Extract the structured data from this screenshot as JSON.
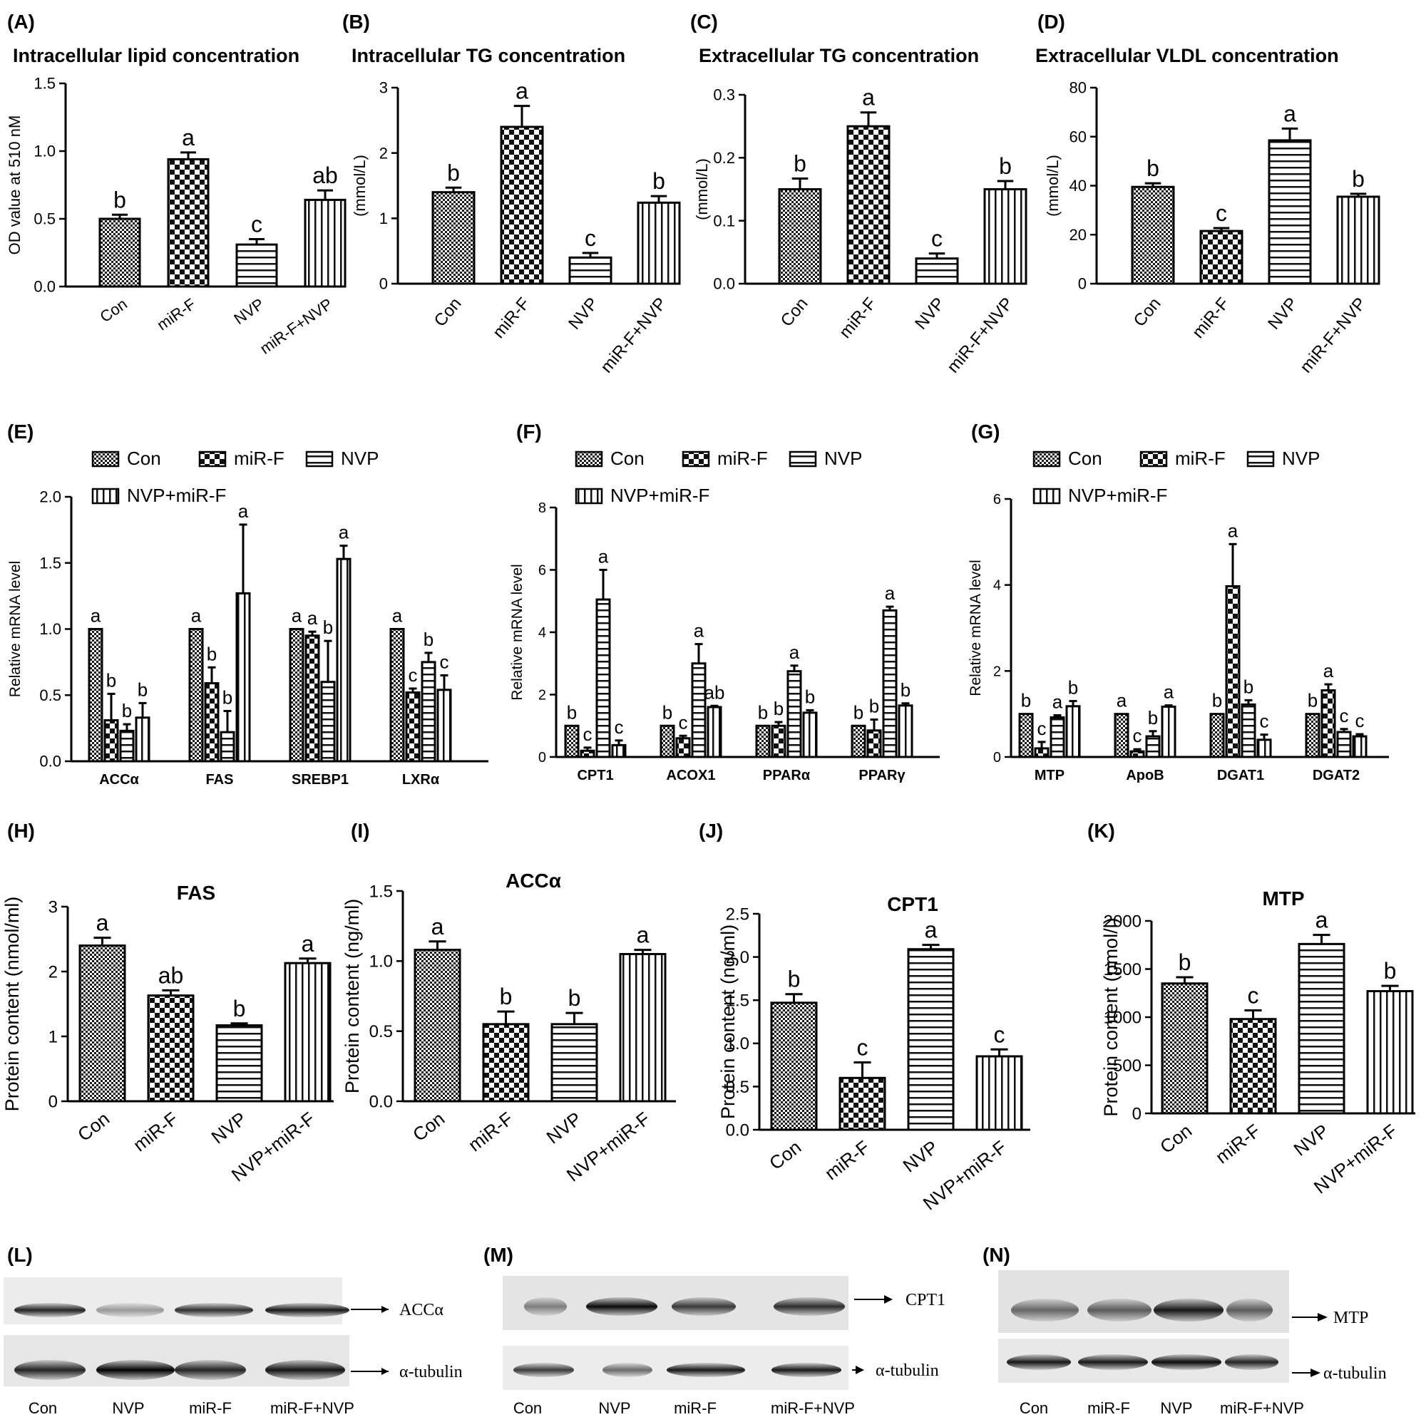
{
  "figure": {
    "western_blots": [
      {
        "label": "(L)",
        "lanes": [
          "Con",
          "NVP",
          "miR-F",
          "miR-F+NVP"
        ],
        "targets": [
          "ACCα",
          "α-tubulin"
        ]
      },
      {
        "label": "(M)",
        "lanes": [
          "Con",
          "NVP",
          "miR-F",
          "miR-F+NVP"
        ],
        "targets": [
          "CPT1",
          "α-tubulin"
        ]
      },
      {
        "label": "(N)",
        "lanes": [
          "Con",
          "miR-F",
          "NVP",
          "miR-F+NVP"
        ],
        "targets": [
          "MTP",
          "α-tubulin"
        ]
      }
    ]
  },
  "chart_data": [
    {
      "id": "A",
      "label": "(A)",
      "type": "bar",
      "title": "Intracellular lipid concentration",
      "ylabel": "OD value at 510 nM",
      "ylim": [
        0,
        1.5
      ],
      "yticks": [
        "0.0",
        "0.5",
        "1.0",
        "1.5"
      ],
      "categories": [
        "Con",
        "miR-F",
        "NVP",
        "miR-F+NVP"
      ],
      "values": [
        0.5,
        0.94,
        0.31,
        0.64
      ],
      "errors": [
        0.03,
        0.05,
        0.04,
        0.07
      ],
      "letters": [
        "b",
        "a",
        "c",
        "ab"
      ],
      "patterns": [
        "dense",
        "check",
        "hlines",
        "vlines"
      ]
    },
    {
      "id": "B",
      "label": "(B)",
      "type": "bar",
      "title": "Intracellular TG concentration",
      "ylabel": "(mmol/L)",
      "ylim": [
        0,
        3
      ],
      "yticks": [
        "0",
        "1",
        "2",
        "3"
      ],
      "categories": [
        "Con",
        "miR-F",
        "NVP",
        "miR-F+NVP"
      ],
      "values": [
        1.4,
        2.4,
        0.4,
        1.24
      ],
      "errors": [
        0.07,
        0.32,
        0.07,
        0.1
      ],
      "letters": [
        "b",
        "a",
        "c",
        "b"
      ],
      "patterns": [
        "dense",
        "check",
        "hlines",
        "vlines"
      ]
    },
    {
      "id": "C",
      "label": "(C)",
      "type": "bar",
      "title": "Extracellular TG concentration",
      "ylabel": "(mmol/L)",
      "ylim": [
        0,
        0.3
      ],
      "yticks": [
        "0.0",
        "0.1",
        "0.2",
        "0.3"
      ],
      "categories": [
        "Con",
        "miR-F",
        "NVP",
        "miR-F+NVP"
      ],
      "values": [
        0.15,
        0.25,
        0.04,
        0.15
      ],
      "errors": [
        0.017,
        0.022,
        0.008,
        0.013
      ],
      "letters": [
        "b",
        "a",
        "c",
        "b"
      ],
      "patterns": [
        "dense",
        "check",
        "hlines",
        "vlines"
      ]
    },
    {
      "id": "D",
      "label": "(D)",
      "type": "bar",
      "title": "Extracellular VLDL concentration",
      "ylabel": "(mmol/L)",
      "ylim": [
        0,
        80
      ],
      "yticks": [
        "0",
        "20",
        "40",
        "60",
        "80"
      ],
      "categories": [
        "Con",
        "miR-F",
        "NVP",
        "miR-F+NVP"
      ],
      "values": [
        39.5,
        21.5,
        58.5,
        35.5
      ],
      "errors": [
        1.5,
        1.2,
        4.8,
        1.2
      ],
      "letters": [
        "b",
        "c",
        "a",
        "b"
      ],
      "patterns": [
        "dense",
        "check",
        "hlines",
        "vlines"
      ]
    },
    {
      "id": "E",
      "label": "(E)",
      "type": "bar",
      "ylabel": "Relative mRNA level",
      "ylim": [
        0,
        2
      ],
      "yticks": [
        "0.0",
        "0.5",
        "1.0",
        "1.5",
        "2.0"
      ],
      "categories": [
        "ACCα",
        "FAS",
        "SREBP1",
        "LXRα"
      ],
      "legend": [
        "Con",
        "miR-F",
        "NVP",
        "NVP+miR-F"
      ],
      "series": [
        {
          "name": "Con",
          "pattern": "dense",
          "values": [
            1.0,
            1.0,
            1.0,
            1.0
          ],
          "errors": [
            0,
            0,
            0,
            0
          ],
          "letters": [
            "a",
            "a",
            "a",
            "a"
          ]
        },
        {
          "name": "miR-F",
          "pattern": "check",
          "values": [
            0.31,
            0.59,
            0.95,
            0.52
          ],
          "errors": [
            0.2,
            0.12,
            0.03,
            0.03
          ],
          "letters": [
            "b",
            "b",
            "a",
            "c"
          ]
        },
        {
          "name": "NVP",
          "pattern": "hlines",
          "values": [
            0.23,
            0.22,
            0.6,
            0.75
          ],
          "errors": [
            0.05,
            0.16,
            0.31,
            0.07
          ],
          "letters": [
            "b",
            "b",
            "b",
            "b"
          ]
        },
        {
          "name": "NVP+miR-F",
          "pattern": "vlines",
          "values": [
            0.33,
            1.27,
            1.53,
            0.54
          ],
          "errors": [
            0.11,
            0.52,
            0.1,
            0.11
          ],
          "letters": [
            "b",
            "a",
            "a",
            "c"
          ]
        }
      ]
    },
    {
      "id": "F",
      "label": "(F)",
      "type": "bar",
      "ylabel": "Relative mRNA level",
      "ylim": [
        0,
        8
      ],
      "yticks": [
        "0",
        "2",
        "4",
        "6",
        "8"
      ],
      "categories": [
        "CPT1",
        "ACOX1",
        "PPARα",
        "PPARγ"
      ],
      "legend": [
        "Con",
        "miR-F",
        "NVP",
        "NVP+miR-F"
      ],
      "series": [
        {
          "name": "Con",
          "pattern": "dense",
          "values": [
            1.0,
            1.0,
            1.0,
            1.0
          ],
          "errors": [
            0,
            0,
            0,
            0
          ],
          "letters": [
            "b",
            "b",
            "b",
            "b"
          ]
        },
        {
          "name": "miR-F",
          "pattern": "check",
          "values": [
            0.2,
            0.6,
            1.0,
            0.85
          ],
          "errors": [
            0.1,
            0.08,
            0.12,
            0.35
          ],
          "letters": [
            "c",
            "c",
            "b",
            "b"
          ]
        },
        {
          "name": "NVP",
          "pattern": "hlines",
          "values": [
            5.05,
            3.0,
            2.75,
            4.7
          ],
          "errors": [
            0.95,
            0.62,
            0.18,
            0.12
          ],
          "letters": [
            "a",
            "a",
            "a",
            "a"
          ]
        },
        {
          "name": "NVP+miR-F",
          "pattern": "vlines",
          "values": [
            0.38,
            1.6,
            1.42,
            1.65
          ],
          "errors": [
            0.15,
            0.04,
            0.08,
            0.07
          ],
          "letters": [
            "c",
            "ab",
            "b",
            "b"
          ]
        }
      ]
    },
    {
      "id": "G",
      "label": "(G)",
      "type": "bar",
      "ylabel": "Relative mRNA level",
      "ylim": [
        0,
        6
      ],
      "yticks": [
        "0",
        "2",
        "4",
        "6"
      ],
      "categories": [
        "MTP",
        "ApoB",
        "DGAT1",
        "DGAT2"
      ],
      "legend": [
        "Con",
        "miR-F",
        "NVP",
        "NVP+miR-F"
      ],
      "series": [
        {
          "name": "Con",
          "pattern": "dense",
          "values": [
            1.0,
            1.0,
            1.0,
            1.0
          ],
          "errors": [
            0,
            0,
            0,
            0
          ],
          "letters": [
            "b",
            "a",
            "b",
            "b"
          ]
        },
        {
          "name": "miR-F",
          "pattern": "check",
          "values": [
            0.2,
            0.13,
            3.97,
            1.55
          ],
          "errors": [
            0.15,
            0.05,
            0.98,
            0.14
          ],
          "letters": [
            "c",
            "c",
            "a",
            "a"
          ]
        },
        {
          "name": "NVP",
          "pattern": "hlines",
          "values": [
            0.92,
            0.48,
            1.22,
            0.58
          ],
          "errors": [
            0.05,
            0.12,
            0.1,
            0.07
          ],
          "letters": [
            "a",
            "b",
            "b",
            "c"
          ]
        },
        {
          "name": "NVP+miR-F",
          "pattern": "vlines",
          "values": [
            1.18,
            1.17,
            0.4,
            0.48
          ],
          "errors": [
            0.12,
            0.03,
            0.12,
            0.05
          ],
          "letters": [
            "b",
            "a",
            "c",
            "c"
          ]
        }
      ]
    },
    {
      "id": "H",
      "label": "(H)",
      "type": "bar",
      "title": "FAS",
      "ylabel": "Protein content (nmol/ml)",
      "ylim": [
        0,
        3
      ],
      "yticks": [
        "0",
        "1",
        "2",
        "3"
      ],
      "categories": [
        "Con",
        "miR-F",
        "NVP",
        "NVP+miR-F"
      ],
      "values": [
        2.4,
        1.63,
        1.17,
        2.13
      ],
      "errors": [
        0.12,
        0.08,
        0.03,
        0.07
      ],
      "letters": [
        "a",
        "ab",
        "b",
        "a"
      ],
      "patterns": [
        "dense",
        "check",
        "hlines",
        "vlines"
      ]
    },
    {
      "id": "I",
      "label": "(I)",
      "type": "bar",
      "title": "ACCα",
      "ylabel": "Protein content (ng/ml)",
      "ylim": [
        0,
        1.5
      ],
      "yticks": [
        "0.0",
        "0.5",
        "1.0",
        "1.5"
      ],
      "categories": [
        "Con",
        "miR-F",
        "NVP",
        "NVP+miR-F"
      ],
      "values": [
        1.08,
        0.55,
        0.55,
        1.05
      ],
      "errors": [
        0.06,
        0.09,
        0.08,
        0.03
      ],
      "letters": [
        "a",
        "b",
        "b",
        "a"
      ],
      "patterns": [
        "dense",
        "check",
        "hlines",
        "vlines"
      ]
    },
    {
      "id": "J",
      "label": "(J)",
      "type": "bar",
      "title": "CPT1",
      "ylabel": "Protein content (ng/ml)",
      "ylim": [
        0,
        2.5
      ],
      "yticks": [
        "0.0",
        "0.5",
        "1.0",
        "1.5",
        "2.0",
        "2.5"
      ],
      "categories": [
        "Con",
        "miR-F",
        "NVP",
        "NVP+miR-F"
      ],
      "values": [
        1.47,
        0.6,
        2.09,
        0.85
      ],
      "errors": [
        0.1,
        0.18,
        0.05,
        0.08
      ],
      "letters": [
        "b",
        "c",
        "a",
        "c"
      ],
      "patterns": [
        "dense",
        "check",
        "hlines",
        "vlines"
      ]
    },
    {
      "id": "K",
      "label": "(K)",
      "type": "bar",
      "title": "MTP",
      "ylabel": "Protein content (pmol/l)",
      "ylim": [
        0,
        2000
      ],
      "yticks": [
        "0",
        "500",
        "1000",
        "1500",
        "2000"
      ],
      "categories": [
        "Con",
        "miR-F",
        "NVP",
        "NVP+miR-F"
      ],
      "values": [
        1350,
        980,
        1760,
        1270
      ],
      "errors": [
        65,
        90,
        95,
        55
      ],
      "letters": [
        "b",
        "c",
        "a",
        "b"
      ],
      "patterns": [
        "dense",
        "check",
        "hlines",
        "vlines"
      ]
    }
  ]
}
